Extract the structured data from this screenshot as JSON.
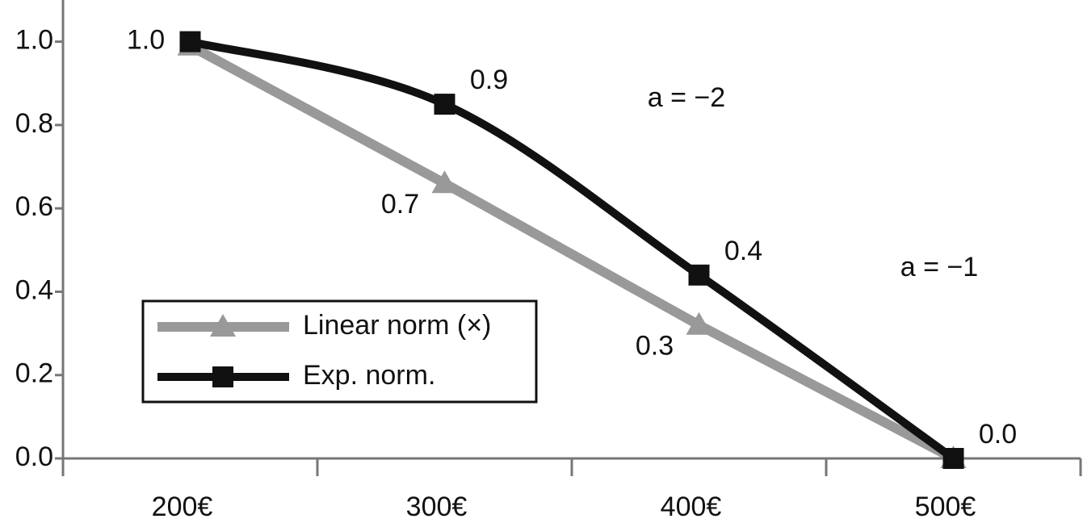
{
  "chart_data": {
    "type": "line",
    "categories": [
      "200€",
      "300€",
      "400€",
      "500€"
    ],
    "series": [
      {
        "name": "Linear norm (×)",
        "color": "#999999",
        "marker": "triangle",
        "values": [
          0.99,
          0.66,
          0.32,
          0
        ],
        "value_labels": [
          null,
          "0.7",
          "0.3",
          null
        ]
      },
      {
        "name": "Exp. norm.",
        "color": "#111111",
        "marker": "square",
        "values": [
          1.0,
          0.85,
          0.44,
          0
        ],
        "value_labels": [
          "1.0",
          "0.9",
          "0.4",
          "0.0"
        ]
      }
    ],
    "ylim": [
      0,
      1.1
    ],
    "yticks": [
      {
        "value": 0,
        "label": "0.0"
      },
      0.2,
      0.4,
      0.6,
      0.8,
      {
        "value": 1,
        "label": "1.0"
      }
    ],
    "annotations": [
      "a = −2",
      "a = −1"
    ],
    "legend": "lower-left"
  }
}
